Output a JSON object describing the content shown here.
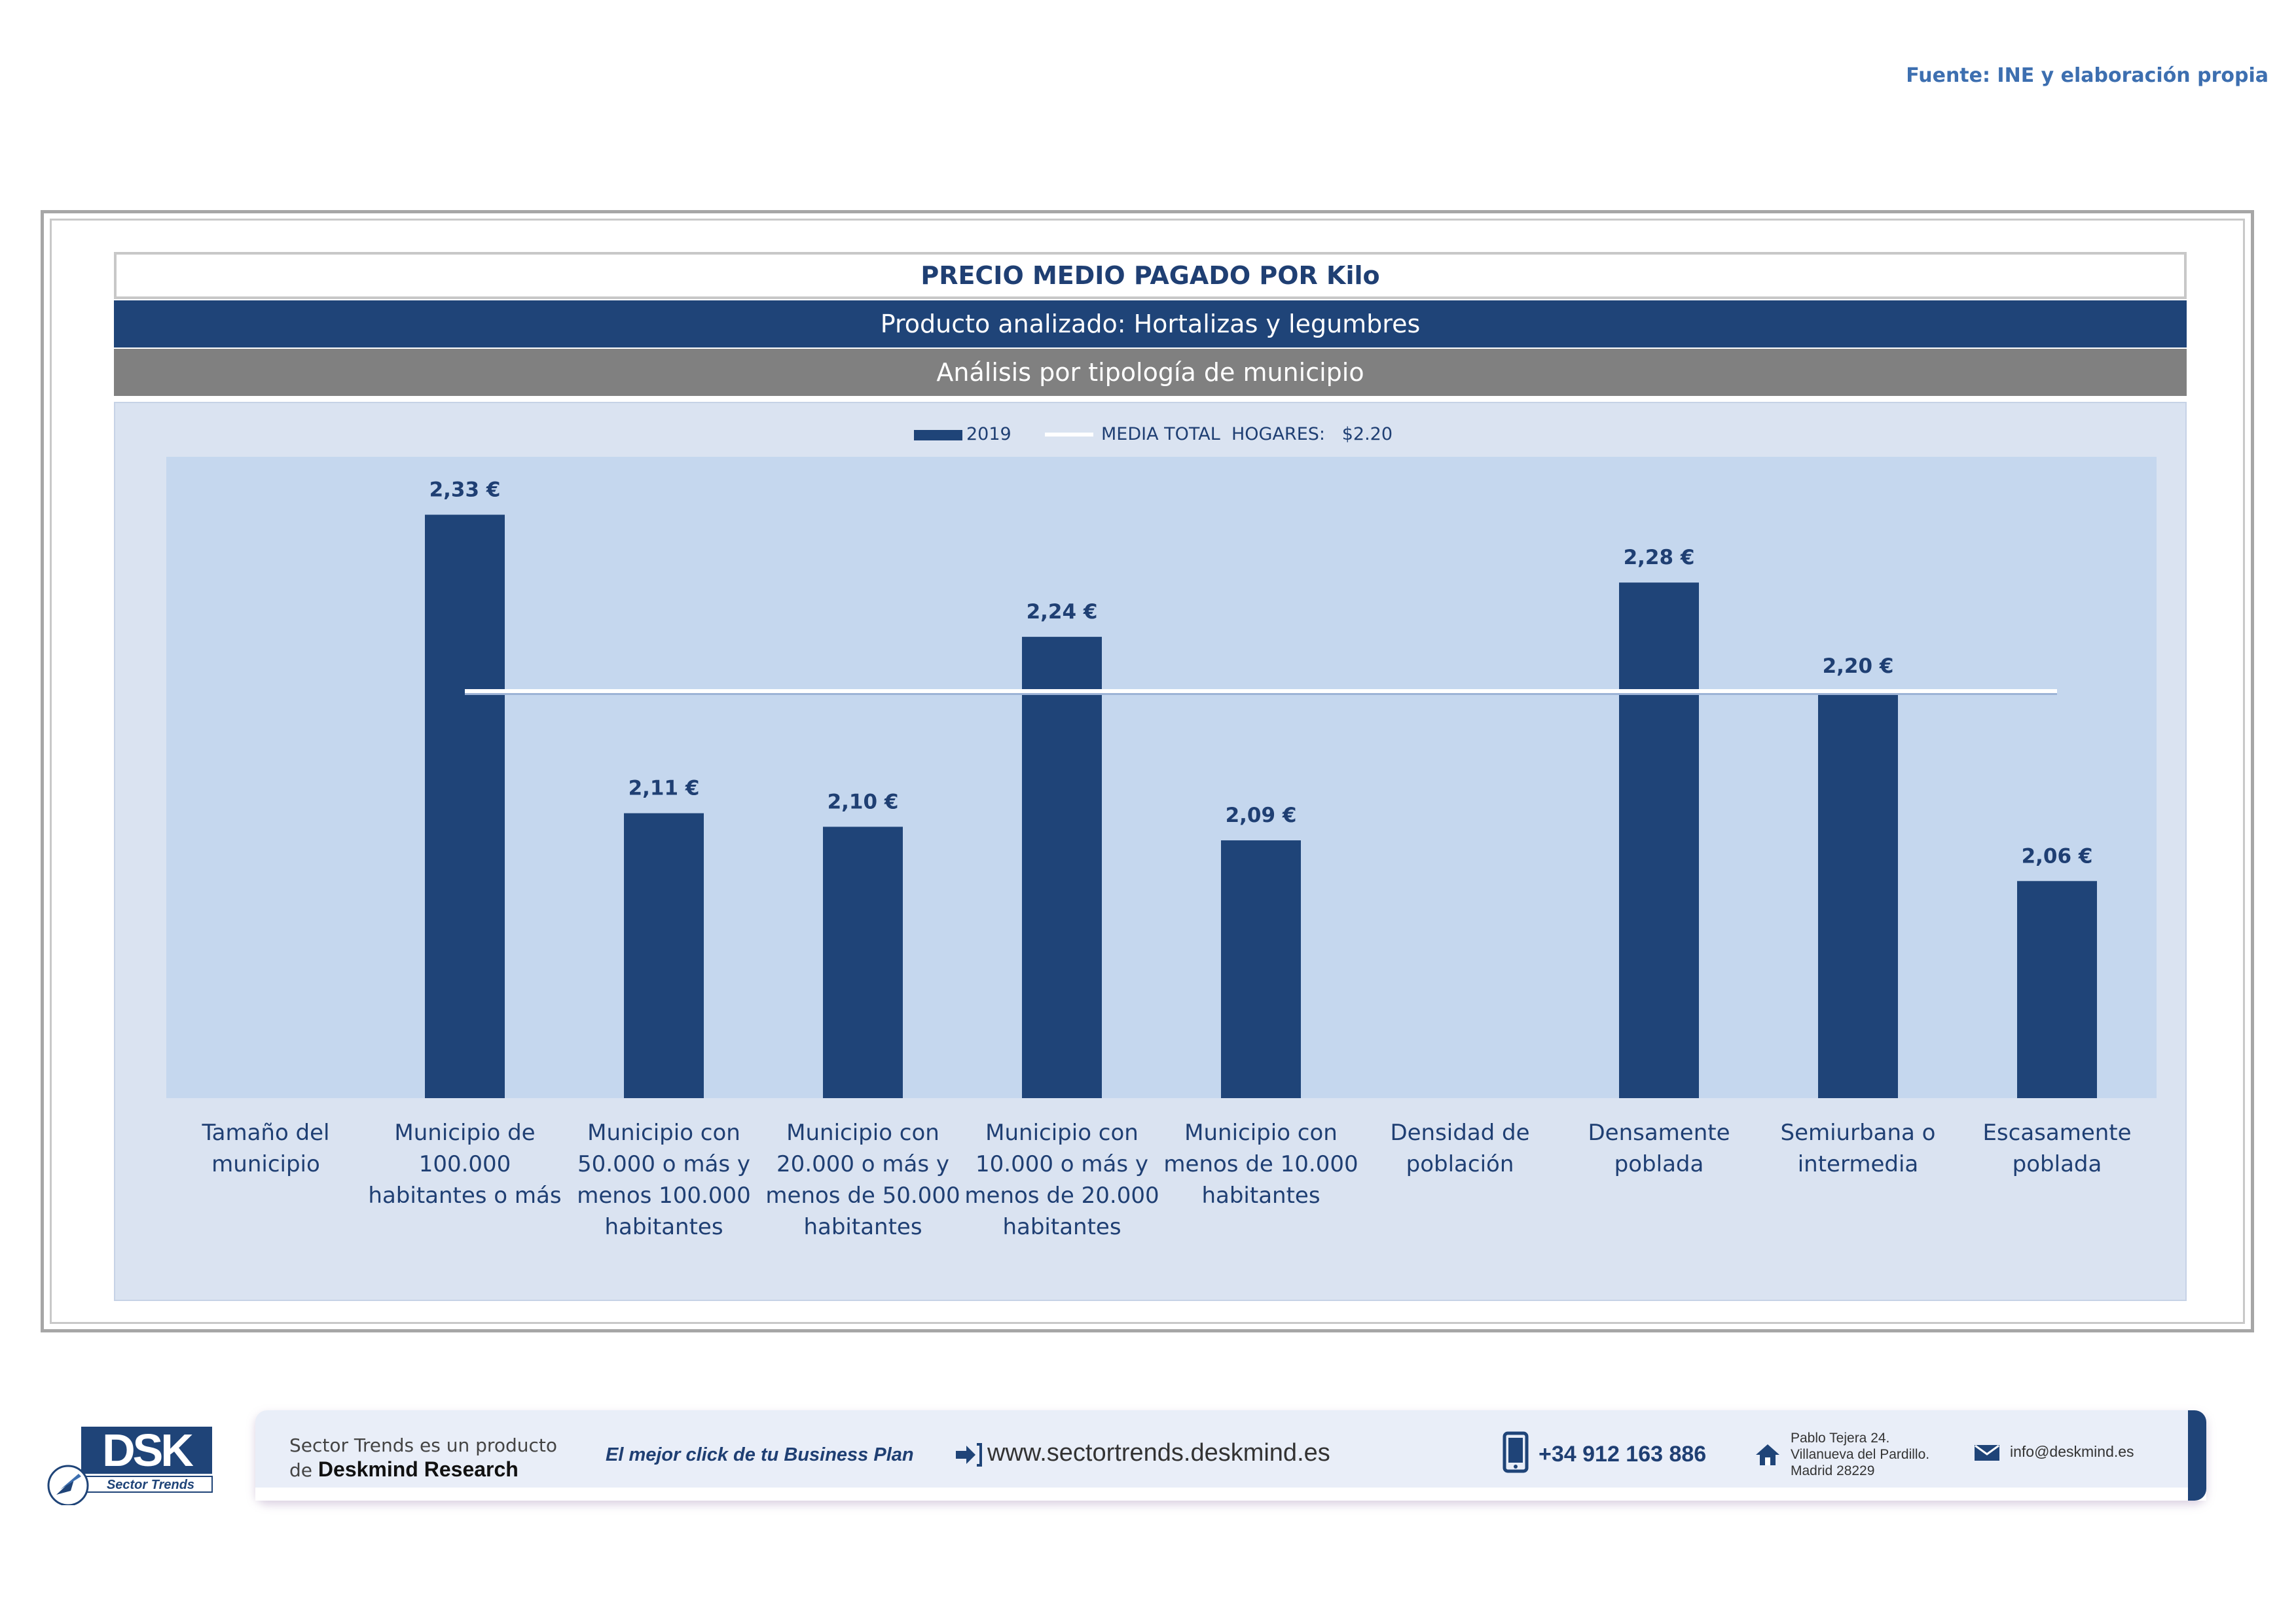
{
  "source": "Fuente: INE y elaboración propia",
  "header": {
    "title": "PRECIO MEDIO PAGADO POR Kilo",
    "product": "Producto analizado: Hortalizas y legumbres",
    "analysis": "Análisis por tipología de municipio"
  },
  "chart_data": {
    "type": "bar",
    "legend": {
      "series_label": "2019",
      "line_label": "MEDIA TOTAL  HOGARES:   $2.20",
      "placement": "top-center"
    },
    "categories": [
      [
        "Tamaño del",
        "municipio"
      ],
      [
        "Municipio de",
        "100.000",
        "habitantes o más"
      ],
      [
        "Municipio con",
        "50.000 o más y",
        "menos 100.000",
        "habitantes"
      ],
      [
        "Municipio con",
        "20.000 o más y",
        "menos de 50.000",
        "habitantes"
      ],
      [
        "Municipio con",
        "10.000 o más y",
        "menos de 20.000",
        "habitantes"
      ],
      [
        "Municipio con",
        "menos de 10.000",
        "habitantes"
      ],
      [
        "Densidad de",
        "población"
      ],
      [
        "Densamente",
        "poblada"
      ],
      [
        "Semiurbana o",
        "intermedia"
      ],
      [
        "Escasamente",
        "poblada"
      ]
    ],
    "values": [
      null,
      2.33,
      2.11,
      2.1,
      2.24,
      2.09,
      null,
      2.28,
      2.2,
      2.06
    ],
    "value_labels": [
      "",
      "2,33 €",
      "2,11 €",
      "2,10 €",
      "2,24 €",
      "2,09 €",
      "",
      "2,28 €",
      "2,20 €",
      "2,06 €"
    ],
    "average": 2.2,
    "ylim": [
      1.9,
      2.35
    ],
    "colors": {
      "bar": "#1f4478",
      "plot_bg": "#c5d7ee",
      "average_line": "#ffffff",
      "label_text": "#1f3f73",
      "axis_text": "#1f3f73"
    }
  },
  "footer": {
    "logo_text": "DSK",
    "logo_sub": "Sector Trends",
    "product_line1": "Sector Trends es un producto",
    "product_prefix": "de ",
    "product_brand": "Deskmind Research",
    "slogan": "El mejor click de tu Business Plan",
    "website": "www.sectortrends.deskmind.es",
    "phone": "+34 912 163 886",
    "address": [
      "Pablo Tejera 24.",
      "Villanueva del Pardillo.",
      "Madrid 28229"
    ],
    "email": "info@deskmind.es"
  }
}
